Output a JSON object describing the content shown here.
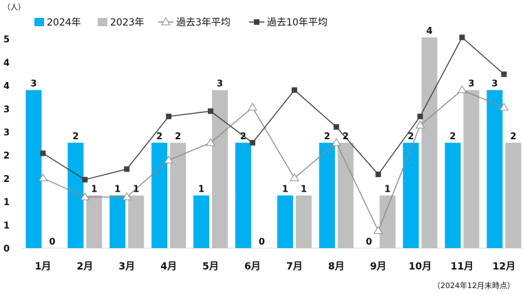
{
  "chart_data": {
    "type": "bar",
    "unit_label": "（人）",
    "note": "（2024年12月末時点）",
    "categories": [
      "1月",
      "2月",
      "3月",
      "4月",
      "5月",
      "6月",
      "7月",
      "8月",
      "9月",
      "10月",
      "11月",
      "12月"
    ],
    "y_tick_labels": [
      "0",
      "1",
      "1",
      "2",
      "2",
      "3",
      "3",
      "4",
      "4",
      "5"
    ],
    "ylim": [
      0,
      4.5
    ],
    "legend_position": "top-left",
    "bar_series": [
      {
        "name": "2024年",
        "color": "#00b0f0",
        "values": [
          3,
          2,
          1,
          2,
          1,
          2,
          1,
          2,
          0,
          2,
          2,
          3
        ],
        "labels": [
          "3",
          "2",
          "1",
          "2",
          "1",
          "2",
          "1",
          "2",
          "0",
          "2",
          "2",
          "3"
        ]
      },
      {
        "name": "2023年",
        "color": "#bfbfbf",
        "values": [
          0,
          1,
          1,
          2,
          3,
          0,
          1,
          2,
          1,
          4,
          3,
          2
        ],
        "labels": [
          "0",
          "1",
          "1",
          "2",
          "3",
          "0",
          "1",
          "2",
          "1",
          "4",
          "3",
          "2"
        ]
      }
    ],
    "line_series": [
      {
        "name": "過去3年平均",
        "color": "#8c8c8c",
        "marker": "triangle-open",
        "values": [
          1.33,
          0.97,
          0.97,
          1.67,
          2.0,
          2.67,
          1.33,
          2.0,
          0.33,
          2.33,
          3.0,
          2.67
        ]
      },
      {
        "name": "過去10年平均",
        "color": "#404040",
        "marker": "square",
        "values": [
          1.8,
          1.3,
          1.5,
          2.5,
          2.6,
          2.0,
          3.0,
          2.3,
          1.4,
          2.5,
          4.0,
          3.3
        ]
      }
    ]
  }
}
